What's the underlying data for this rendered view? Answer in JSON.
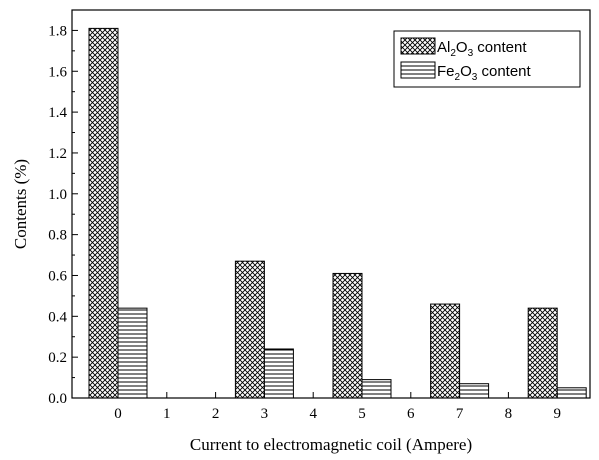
{
  "chart_data": {
    "type": "bar",
    "xlabel": "Current to electromagnetic coil (Ampere)",
    "ylabel": "Contents (%)",
    "x_ticks": [
      "0",
      "1",
      "2",
      "3",
      "4",
      "5",
      "6",
      "7",
      "8",
      "9"
    ],
    "categories": [
      "0",
      "3",
      "5",
      "7",
      "9"
    ],
    "ylim": [
      0,
      1.9
    ],
    "y_ticks": [
      "0.0",
      "0.2",
      "0.4",
      "0.6",
      "0.8",
      "1.0",
      "1.2",
      "1.4",
      "1.6",
      "1.8"
    ],
    "series": [
      {
        "name": "Al2O3 content",
        "pattern": "crosshatch",
        "values": [
          1.81,
          0.67,
          0.61,
          0.46,
          0.44
        ]
      },
      {
        "name": "Fe2O3 content",
        "pattern": "horizontal",
        "values": [
          0.44,
          0.24,
          0.09,
          0.07,
          0.05
        ]
      }
    ],
    "legend": {
      "position": "top-right",
      "items": [
        {
          "base": "Al",
          "sub1": "2",
          "mid": "O",
          "sub2": "3",
          "rest": " content"
        },
        {
          "base": "Fe",
          "sub1": "2",
          "mid": "O",
          "sub2": "3",
          "rest": " content"
        }
      ]
    },
    "grid": false
  }
}
